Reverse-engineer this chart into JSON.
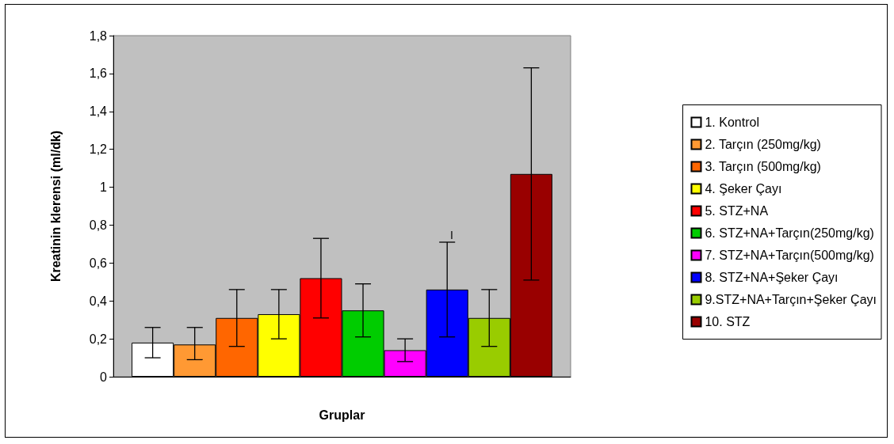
{
  "chart_data": {
    "type": "bar",
    "xlabel": "Gruplar",
    "ylabel": "Kreatinin klerensi (ml/dk)",
    "categories": [
      null
    ],
    "series": [
      {
        "name": "1. Kontrol",
        "color": "#ffffff",
        "values": [
          0.18
        ],
        "errors": [
          [
            0.1,
            0.26
          ]
        ]
      },
      {
        "name": "2. Tarçın (250mg/kg)",
        "color": "#ff9933",
        "values": [
          0.17
        ],
        "errors": [
          [
            0.09,
            0.26
          ]
        ]
      },
      {
        "name": "3. Tarçın (500mg/kg)",
        "color": "#ff6600",
        "values": [
          0.31
        ],
        "errors": [
          [
            0.16,
            0.46
          ]
        ]
      },
      {
        "name": "4. Şeker Çayı",
        "color": "#ffff00",
        "values": [
          0.33
        ],
        "errors": [
          [
            0.2,
            0.46
          ]
        ]
      },
      {
        "name": "5. STZ+NA",
        "color": "#ff0000",
        "values": [
          0.52
        ],
        "errors": [
          [
            0.31,
            0.73
          ]
        ]
      },
      {
        "name": "6. STZ+NA+Tarçın(250mg/kg)",
        "color": "#00cc00",
        "values": [
          0.35
        ],
        "errors": [
          [
            0.21,
            0.49
          ]
        ]
      },
      {
        "name": "7. STZ+NA+Tarçın(500mg/kg)",
        "color": "#ff00ff",
        "values": [
          0.14
        ],
        "errors": [
          [
            0.08,
            0.2
          ]
        ]
      },
      {
        "name": "8. STZ+NA+Şeker Çayı",
        "color": "#0000ff",
        "values": [
          0.46
        ],
        "errors": [
          [
            0.21,
            0.71
          ]
        ]
      },
      {
        "name": "9.STZ+NA+Tarçın+Şeker Çayı",
        "color": "#99cc00",
        "values": [
          0.31
        ],
        "errors": [
          [
            0.16,
            0.46
          ]
        ]
      },
      {
        "name": "10. STZ",
        "color": "#990000",
        "values": [
          1.07
        ],
        "errors": [
          [
            0.51,
            1.63
          ]
        ]
      }
    ],
    "annotations": [
      "I"
    ],
    "ylim": [
      0,
      1.8
    ],
    "yticks": [
      0,
      {
        "value": 0.2,
        "label": "0,2"
      },
      {
        "value": 0.4,
        "label": "0,4"
      },
      {
        "value": 0.6,
        "label": "0,6"
      },
      {
        "value": 0.8,
        "label": "0,8"
      },
      1,
      {
        "value": 1.2,
        "label": "1,2"
      },
      {
        "value": 1.4,
        "label": "1,4"
      },
      {
        "value": 1.6,
        "label": "1,6"
      },
      {
        "value": 1.8,
        "label": "1,8"
      }
    ],
    "grid": false,
    "legend": "right"
  }
}
